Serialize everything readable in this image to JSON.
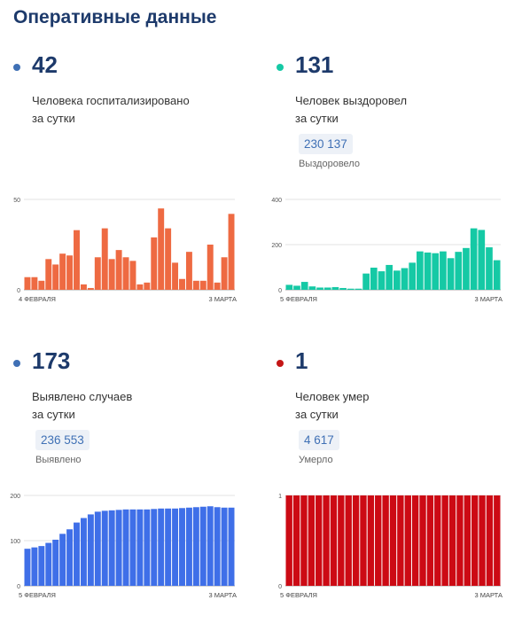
{
  "page_title": "Оперативные данные",
  "cards": {
    "hospitalized": {
      "value": "42",
      "desc_line1": "Человека госпитализировано",
      "desc_line2": "за сутки",
      "color": "#ee6a42",
      "dot_color": "#3f70b5"
    },
    "recovered": {
      "value": "131",
      "desc_line1": "Человек выздоровел",
      "desc_line2": "за сутки",
      "total": "230 137",
      "total_label": "Выздоровело",
      "color": "#15c9a5",
      "dot_color": "#15c9a5"
    },
    "cases": {
      "value": "173",
      "desc_line1": "Выявлено случаев",
      "desc_line2": "за сутки",
      "total": "236 553",
      "total_label": "Выявлено",
      "color": "#3f6fe8",
      "dot_color": "#3f70b5"
    },
    "deaths": {
      "value": "1",
      "desc_line1": "Человек умер",
      "desc_line2": "за сутки",
      "total": "4 617",
      "total_label": "Умерло",
      "color": "#cc0a14",
      "dot_color": "#c41616"
    }
  },
  "chart_data": [
    {
      "id": "hospitalized",
      "type": "bar",
      "color": "#ee6a42",
      "ylim": [
        0,
        50
      ],
      "yticks": [
        0,
        50
      ],
      "x_start_label": "4 ФЕВРАЛЯ",
      "x_end_label": "3 МАРТА",
      "values": [
        7,
        7,
        5,
        17,
        14,
        20,
        19,
        33,
        3,
        1,
        18,
        34,
        17,
        22,
        18,
        16,
        3,
        4,
        29,
        45,
        34,
        15,
        6,
        21,
        5,
        5,
        25,
        4,
        18,
        42
      ]
    },
    {
      "id": "recovered",
      "type": "bar",
      "color": "#15c9a5",
      "ylim": [
        0,
        400
      ],
      "yticks": [
        0,
        200,
        400
      ],
      "x_start_label": "5 ФЕВРАЛЯ",
      "x_end_label": "3 МАРТА",
      "values": [
        22,
        18,
        35,
        15,
        10,
        10,
        12,
        8,
        5,
        5,
        72,
        98,
        82,
        110,
        85,
        96,
        120,
        170,
        165,
        162,
        170,
        140,
        168,
        185,
        272,
        265,
        188,
        131
      ]
    },
    {
      "id": "cases",
      "type": "bar",
      "color": "#3f6fe8",
      "ylim": [
        0,
        200
      ],
      "yticks": [
        0,
        100,
        200
      ],
      "x_start_label": "5 ФЕВРАЛЯ",
      "x_end_label": "3 МАРТА",
      "values": [
        82,
        85,
        88,
        95,
        102,
        115,
        125,
        140,
        150,
        158,
        164,
        166,
        167,
        168,
        169,
        169,
        169,
        169,
        170,
        171,
        171,
        171,
        172,
        173,
        174,
        175,
        176,
        174,
        173,
        173
      ]
    },
    {
      "id": "deaths",
      "type": "bar",
      "color": "#cc0a14",
      "ylim": [
        0,
        1
      ],
      "yticks": [
        0,
        1
      ],
      "x_start_label": "5 ФЕВРАЛЯ",
      "x_end_label": "3 МАРТА",
      "values": [
        1,
        1,
        1,
        1,
        1,
        1,
        1,
        1,
        1,
        1,
        1,
        1,
        1,
        1,
        1,
        1,
        1,
        1,
        1,
        1,
        1,
        1,
        1,
        1,
        1,
        1,
        1,
        1,
        1
      ]
    }
  ]
}
